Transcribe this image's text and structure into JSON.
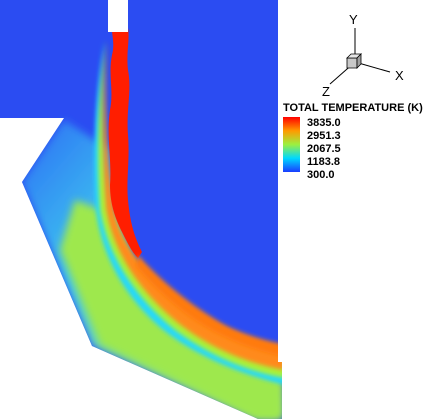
{
  "legend": {
    "title": "TOTAL TEMPERATURE (K)",
    "labels": [
      "3835.0",
      "2951.3",
      "2067.5",
      "1183.8",
      "300.0"
    ],
    "colors": [
      "#ff0000",
      "#ffa500",
      "#90ee55",
      "#00d0ff",
      "#1a3cff"
    ]
  },
  "axes": {
    "y": "Y",
    "x": "X",
    "z": "Z"
  },
  "colors": {
    "background_fluid": "#2b4cf2",
    "jet_core": "#ff1e00",
    "hot_band": "#ff8a1a",
    "warm": "#a8f23a",
    "cool_edge": "#18d8ff"
  }
}
